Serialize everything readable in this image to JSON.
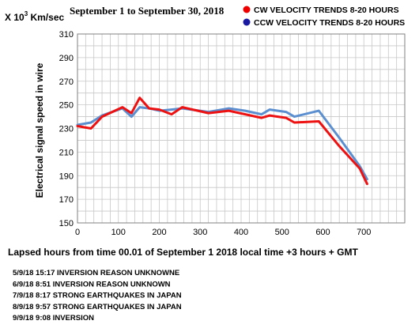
{
  "chart_data": {
    "type": "line",
    "title": "September 1 to September 30, 2018",
    "units_prefix": "X 10",
    "units_exponent": "3",
    "units_suffix": " Km/sec",
    "xlabel": "Lapsed hours from time 00.01 of  September 1  2018  local time  +3 hours + GMT",
    "ylabel": "Electrical signal speed in wire",
    "xlim": [
      0,
      800
    ],
    "ylim": [
      150,
      310
    ],
    "x_ticks": [
      0,
      100,
      200,
      300,
      400,
      500,
      600,
      700
    ],
    "y_ticks": [
      150,
      170,
      190,
      210,
      230,
      250,
      270,
      290,
      310
    ],
    "grid": true,
    "legend_position": "top-right",
    "series": [
      {
        "name": "CW VELOCITY TRENDS 8-20 HOURS",
        "color": "#ee1111",
        "x": [
          0,
          33,
          60,
          110,
          132,
          152,
          175,
          200,
          230,
          256,
          320,
          370,
          410,
          450,
          470,
          510,
          530,
          590,
          640,
          690,
          708
        ],
        "y": [
          232,
          230,
          240,
          248,
          243,
          256,
          247,
          246,
          242,
          248,
          243,
          245,
          242,
          239,
          241,
          239,
          235,
          236,
          215,
          196,
          183
        ]
      },
      {
        "name": "CCW VELOCITY TRENDS 8-20 HOURS",
        "color": "#5b8fd0",
        "x": [
          0,
          33,
          60,
          110,
          132,
          152,
          175,
          200,
          230,
          256,
          320,
          370,
          410,
          450,
          470,
          510,
          530,
          590,
          640,
          690,
          708
        ],
        "y": [
          233,
          235,
          241,
          247,
          240,
          248,
          247,
          245,
          246,
          247,
          244,
          247,
          245,
          242,
          246,
          244,
          240,
          245,
          222,
          198,
          187
        ]
      }
    ]
  },
  "notes": [
    "5/9/18   15:17 INVERSION REASON UNKNOWNE",
    "6/9/18   8:51 INVERSION REASON UNKNOWN",
    "7/9/18   8:17 STRONG EARTHQUAKES IN JAPAN",
    "8/9/18   9:57 STRONG EARTHQUAKES IN JAPAN",
    "9/9/18   9:08 INVERSION"
  ]
}
